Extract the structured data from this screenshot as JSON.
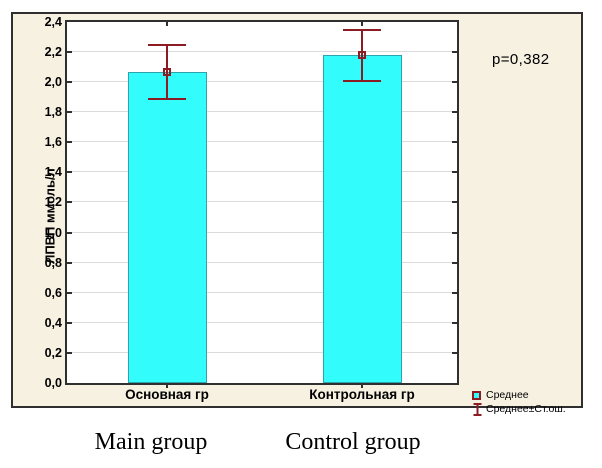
{
  "figure": {
    "background_color": "#F7F1E2",
    "frame_color": "#2F2F2F",
    "gridline_color": "#DBDBDB",
    "p_value_label": "p=0,382",
    "y_axis_title": "ЛПВП ммоль/л",
    "legend": [
      {
        "icon": "mean-square-icon",
        "label": "Среднее"
      },
      {
        "icon": "error-ibeam-icon",
        "label": "Среднее±Ст.ош."
      }
    ]
  },
  "footer_labels": [
    "Main group",
    "Control group"
  ],
  "chart_data": {
    "type": "bar",
    "categories": [
      "Основная гр",
      "Контрольная гр"
    ],
    "series": [
      {
        "name": "Среднее",
        "values": [
          2.07,
          2.18
        ]
      }
    ],
    "errors_se": [
      0.18,
      0.17
    ],
    "title": "",
    "xlabel": "",
    "ylabel": "ЛПВП ммоль/л",
    "ylim": [
      0,
      2.4
    ],
    "ytick_step": 0.2,
    "ytick_labels": [
      "0,0",
      "0,2",
      "0,4",
      "0,6",
      "0,8",
      "1,0",
      "1,2",
      "1,4",
      "1,6",
      "1,8",
      "2,0",
      "2,2",
      "2,4"
    ],
    "grid": true,
    "legend_position": "bottom-right",
    "annotations": [
      "p=0,382"
    ],
    "decimal_separator": ",",
    "bar_color": "#33FCFC",
    "bar_border_color": "#2FA3AC",
    "error_color": "#8B1C24"
  }
}
